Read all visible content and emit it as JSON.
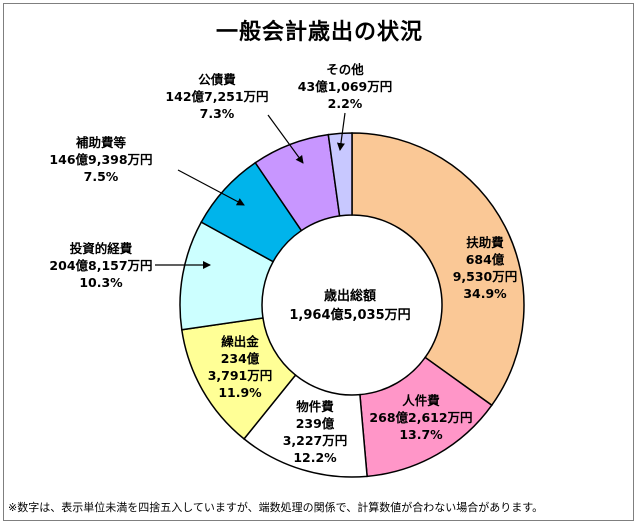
{
  "chart_data": {
    "type": "pie",
    "title": "一般会計歳出の状況",
    "center_label": {
      "title": "歳出総額",
      "amount": "1,964億5,035万円"
    },
    "slices": [
      {
        "name": "扶助費",
        "amount_line1": "684億",
        "amount_line2": "9,530万円",
        "percent_label": "34.9%",
        "value": 34.9,
        "color": "#fac896"
      },
      {
        "name": "人件費",
        "amount_line1": "268億2,612万円",
        "amount_line2": "",
        "percent_label": "13.7%",
        "value": 13.7,
        "color": "#ff96c8"
      },
      {
        "name": "物件費",
        "amount_line1": "239億",
        "amount_line2": "3,227万円",
        "percent_label": "12.2%",
        "value": 12.2,
        "color": "#ffffff"
      },
      {
        "name": "繰出金",
        "amount_line1": "234億",
        "amount_line2": "3,791万円",
        "percent_label": "11.9%",
        "value": 11.9,
        "color": "#ffff96"
      },
      {
        "name": "投資的経費",
        "amount_line1": "204億8,157万円",
        "amount_line2": "",
        "percent_label": "10.3%",
        "value": 10.3,
        "color": "#ccffff"
      },
      {
        "name": "補助費等",
        "amount_line1": "146億9,398万円",
        "amount_line2": "",
        "percent_label": "7.5%",
        "value": 7.5,
        "color": "#00b4eb"
      },
      {
        "name": "公債費",
        "amount_line1": "142億7,251万円",
        "amount_line2": "",
        "percent_label": "7.3%",
        "value": 7.3,
        "color": "#c896ff"
      },
      {
        "name": "その他",
        "amount_line1": "43億1,069万円",
        "amount_line2": "",
        "percent_label": "2.2%",
        "value": 2.2,
        "color": "#c8c8ff"
      }
    ]
  },
  "footnote": "※数字は、表示単位未満を四捨五入していますが、端数処理の関係で、計算数値が合わない場合があります。"
}
